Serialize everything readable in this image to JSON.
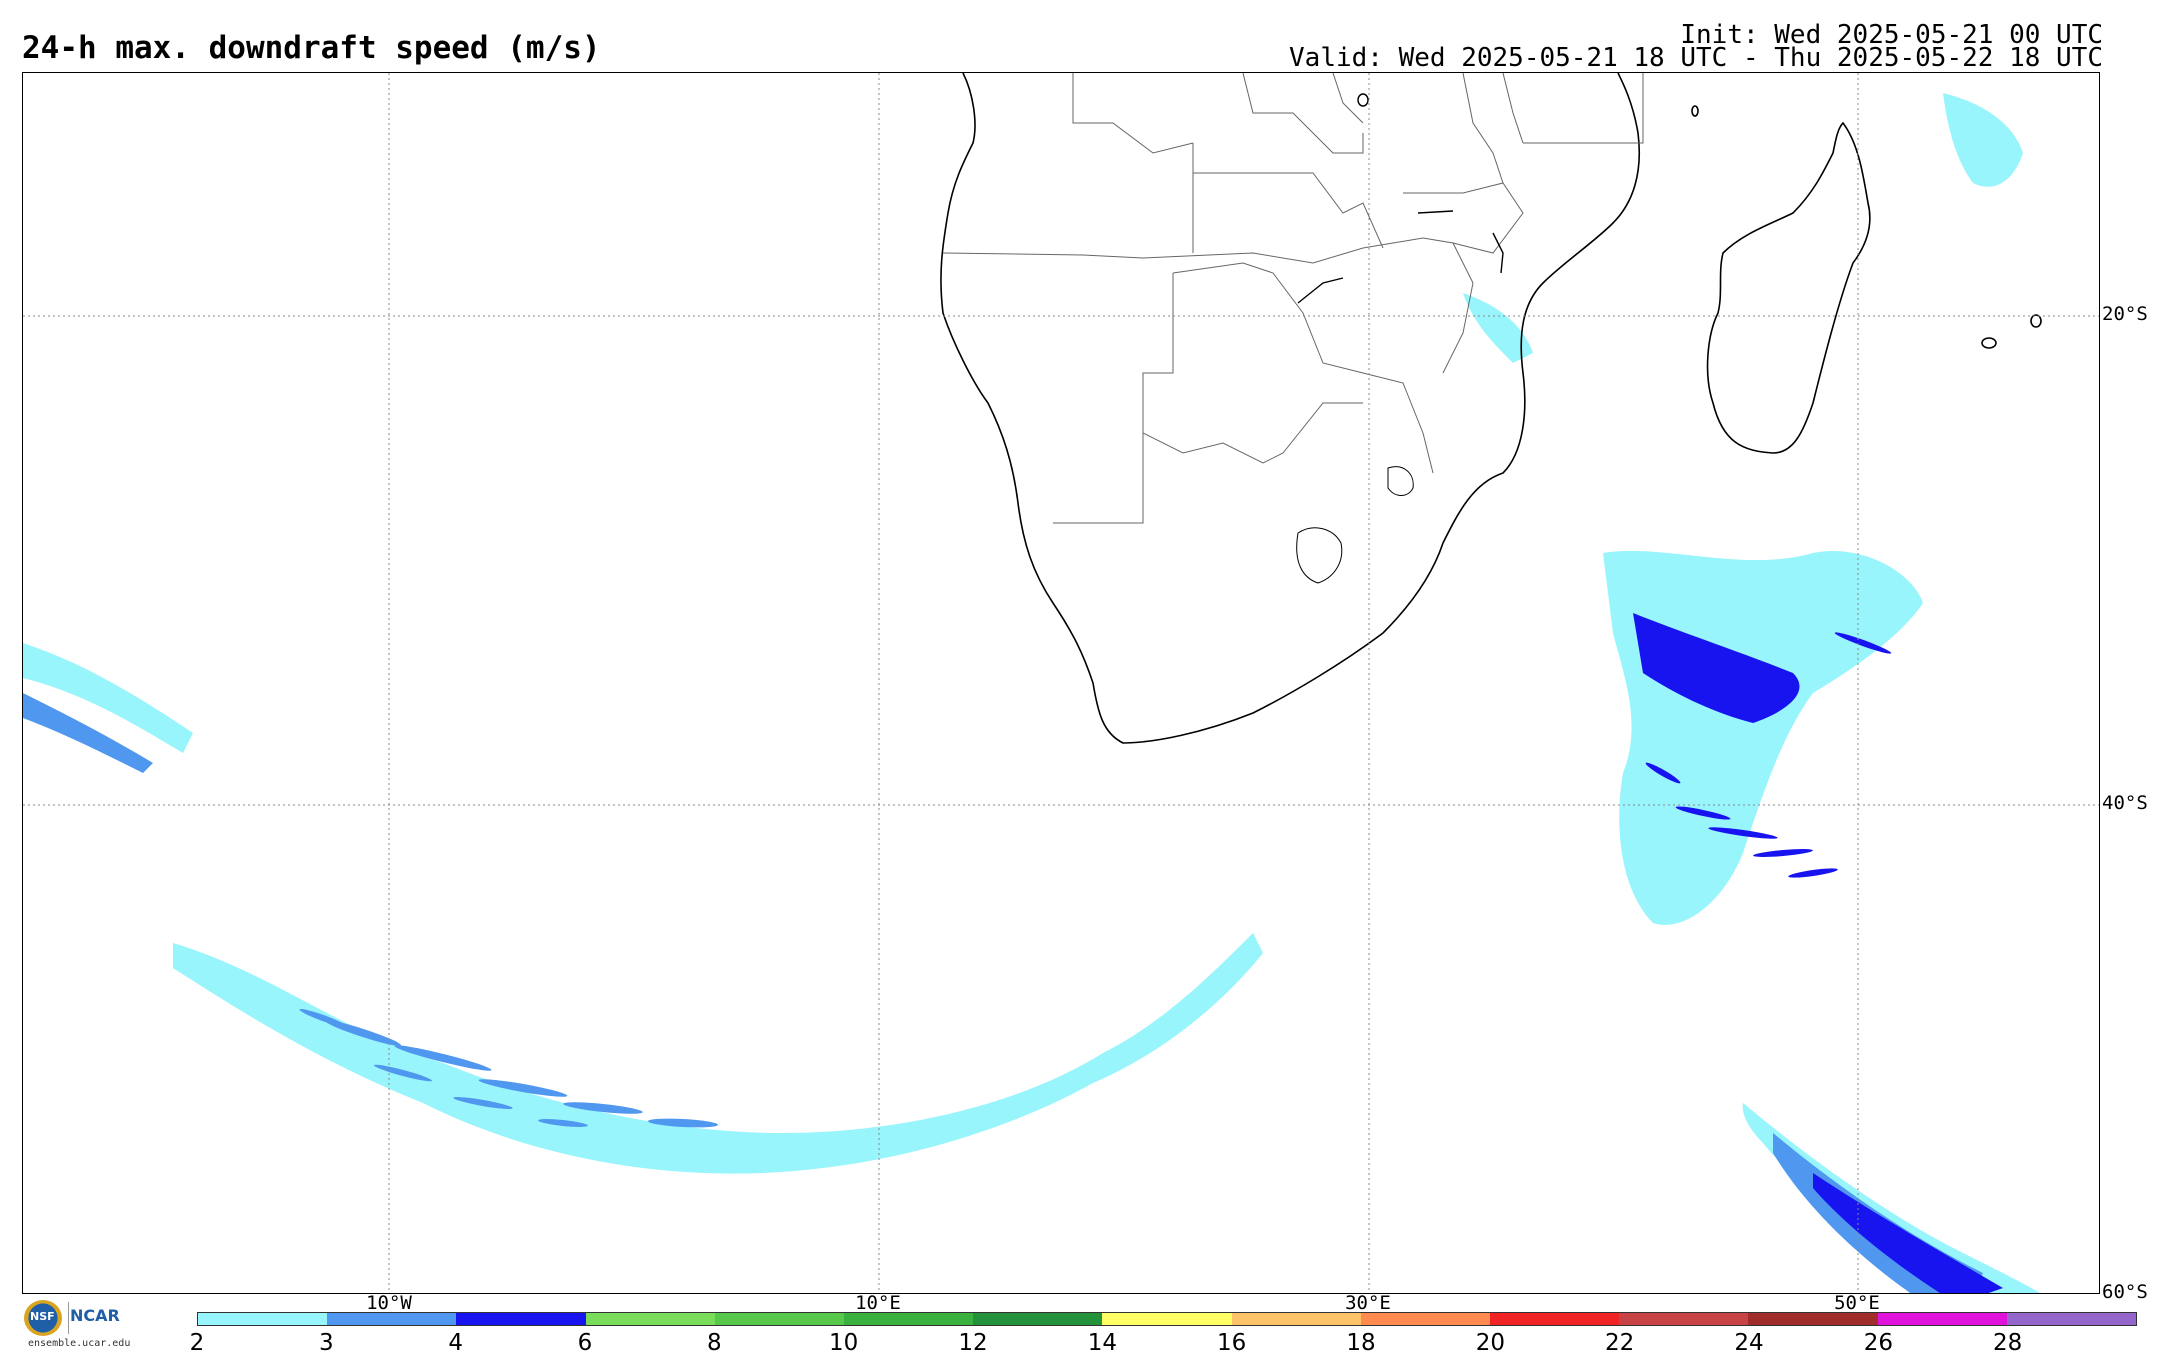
{
  "header": {
    "title": "24-h max. downdraft speed (m/s)",
    "init": "Init: Wed 2025-05-21 00 UTC",
    "valid": "Valid: Wed 2025-05-21 18 UTC - Thu 2025-05-22 18 UTC"
  },
  "axes": {
    "latitude_labels": [
      "20°S",
      "40°S",
      "60°S"
    ],
    "longitude_labels": [
      "10°W",
      "10°E",
      "30°E",
      "50°E"
    ]
  },
  "colorbar": {
    "ticks": [
      "2",
      "3",
      "4",
      "6",
      "8",
      "10",
      "12",
      "14",
      "16",
      "18",
      "20",
      "22",
      "24",
      "26",
      "28"
    ],
    "colors": [
      "#98f5fb",
      "#4f97ef",
      "#1814f0",
      "#79dc5a",
      "#58c84a",
      "#3ab03e",
      "#24923a",
      "#ffff66",
      "#ffc36a",
      "#ff8a50",
      "#f02424",
      "#c84444",
      "#a02c2c",
      "#e013dc",
      "#9466cc"
    ]
  },
  "logo": {
    "nsf": "NSF",
    "ncar": "NCAR",
    "url": "ensemble.ucar.edu"
  },
  "colors": {
    "light_cyan": "#98f5fb",
    "mid_blue": "#4f97ef",
    "dark_blue": "#1814f0",
    "coast": "#000000",
    "borders": "#666666",
    "grid": "#888888"
  }
}
